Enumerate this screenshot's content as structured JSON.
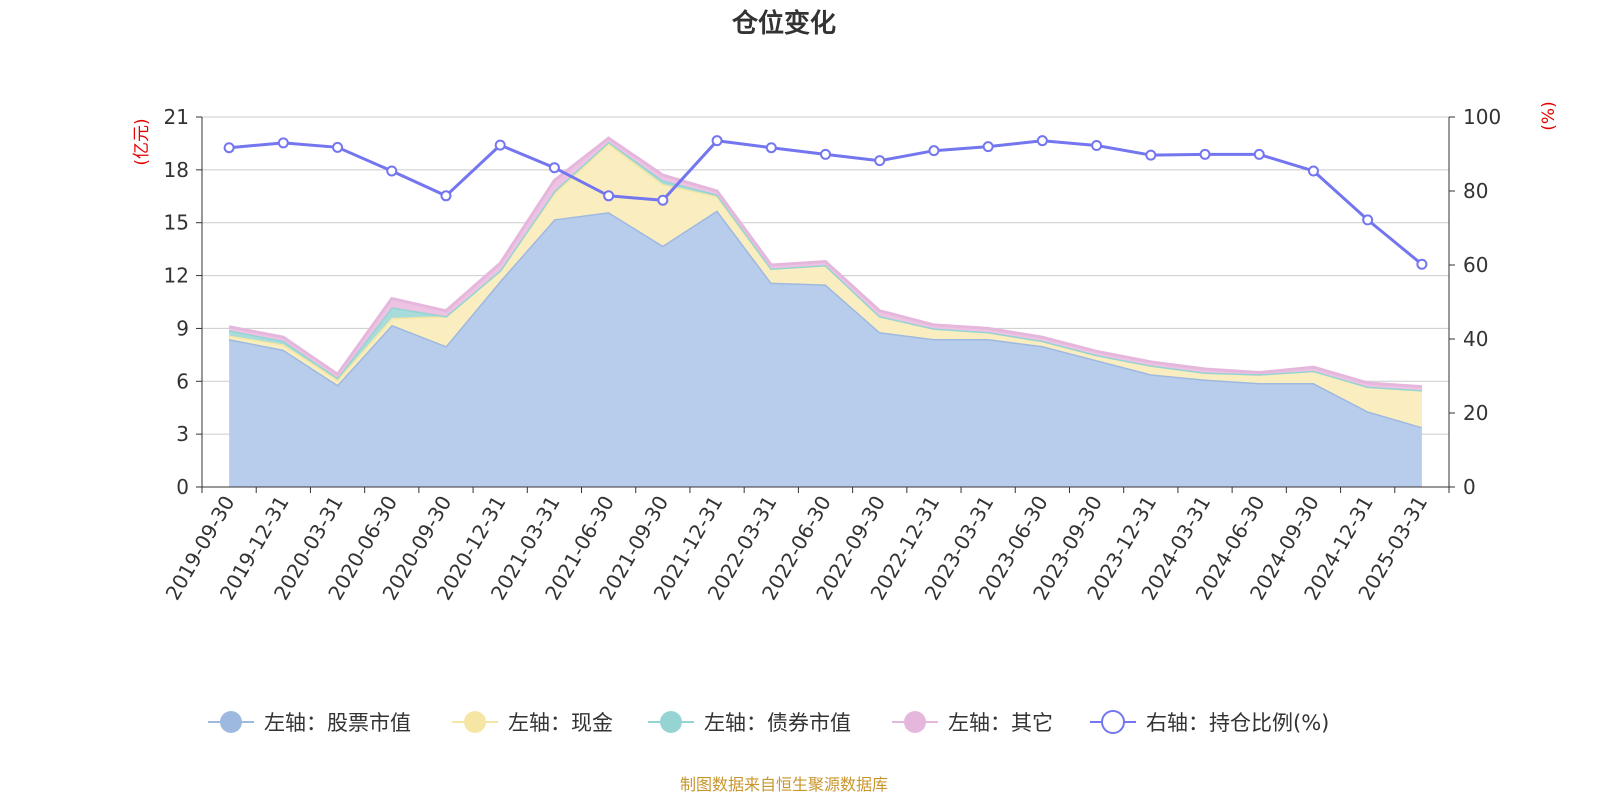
{
  "chart_data": {
    "type": "area",
    "title": "仓位变化",
    "left_unit": "(亿元)",
    "right_unit": "(%)",
    "left_ylim": [
      0,
      21
    ],
    "left_ticks": [
      "0",
      "3",
      "6",
      "9",
      "12",
      "15",
      "18",
      "21"
    ],
    "right_ylim": [
      0,
      100
    ],
    "right_ticks": [
      "0",
      "20",
      "40",
      "60",
      "80",
      "100"
    ],
    "categories": [
      "2019-09-30",
      "2019-12-31",
      "2020-03-31",
      "2020-06-30",
      "2020-09-30",
      "2020-12-31",
      "2021-03-31",
      "2021-06-30",
      "2021-09-30",
      "2021-12-31",
      "2022-03-31",
      "2022-06-30",
      "2022-09-30",
      "2022-12-31",
      "2023-03-31",
      "2023-06-30",
      "2023-09-30",
      "2023-12-31",
      "2024-03-31",
      "2024-06-30",
      "2024-09-30",
      "2024-12-31",
      "2025-03-31"
    ],
    "series": [
      {
        "name": "左轴：股票市值",
        "axis": "left",
        "type": "area",
        "color": "#9eb9e0",
        "fill": "#b8cdec",
        "values": [
          8.4,
          7.8,
          5.8,
          9.2,
          8.0,
          11.7,
          15.2,
          15.6,
          13.7,
          15.7,
          11.6,
          11.5,
          8.8,
          8.4,
          8.4,
          8.0,
          7.2,
          6.4,
          6.1,
          5.9,
          5.9,
          4.3,
          3.4
        ]
      },
      {
        "name": "左轴：现金",
        "axis": "left",
        "type": "area",
        "color": "#f6e6a3",
        "fill": "#faedbf",
        "values": [
          0.2,
          0.3,
          0.3,
          0.4,
          1.7,
          0.6,
          1.5,
          3.9,
          3.5,
          0.8,
          0.8,
          1.1,
          0.9,
          0.6,
          0.4,
          0.3,
          0.3,
          0.5,
          0.4,
          0.5,
          0.7,
          1.4,
          2.1
        ]
      },
      {
        "name": "左轴：债券市值",
        "axis": "left",
        "type": "area",
        "color": "#96d4d3",
        "fill": "#a8dcdb",
        "values": [
          0.3,
          0.2,
          0.1,
          0.6,
          0.0,
          0.0,
          0.1,
          0.1,
          0.2,
          0.1,
          0.0,
          0.0,
          0.0,
          0.0,
          0.0,
          0.0,
          0.0,
          0.0,
          0.0,
          0.0,
          0.0,
          0.0,
          0.0
        ]
      },
      {
        "name": "左轴：其它",
        "axis": "left",
        "type": "area",
        "color": "#e6b7dc",
        "fill": "#edc3e3",
        "values": [
          0.2,
          0.2,
          0.2,
          0.5,
          0.3,
          0.4,
          0.6,
          0.2,
          0.3,
          0.2,
          0.2,
          0.2,
          0.3,
          0.2,
          0.2,
          0.2,
          0.2,
          0.2,
          0.2,
          0.1,
          0.2,
          0.2,
          0.2
        ]
      },
      {
        "name": "右轴：持仓比例(%)",
        "axis": "right",
        "type": "line",
        "color": "#7476ef",
        "values": [
          91.7,
          93.0,
          91.8,
          85.4,
          78.7,
          92.4,
          86.3,
          78.7,
          77.5,
          93.6,
          91.7,
          89.9,
          88.2,
          90.9,
          92.0,
          93.6,
          92.3,
          89.7,
          89.9,
          89.9,
          85.4,
          72.2,
          60.2
        ]
      }
    ],
    "grid": true,
    "legend_position": "bottom"
  },
  "source_note": "制图数据来自恒生聚源数据库"
}
